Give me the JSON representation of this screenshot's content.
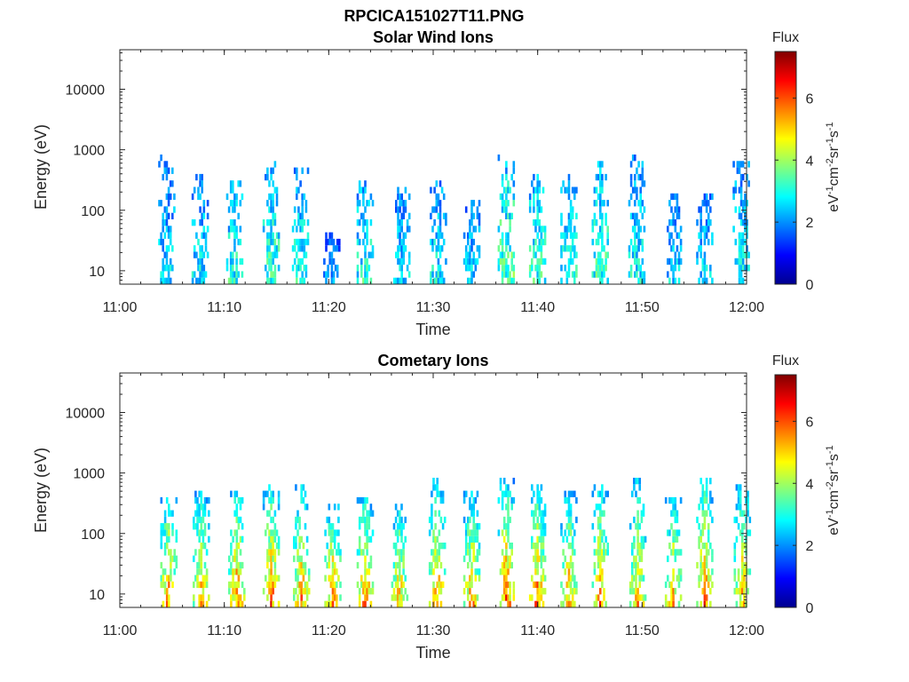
{
  "figure": {
    "title": "RPCICA151027T11.PNG"
  },
  "colormap": "jet",
  "chart_data": [
    {
      "type": "heatmap",
      "title": "Solar Wind Ions",
      "xlabel": "Time",
      "ylabel": "Energy (eV)",
      "xlim": [
        "11:00",
        "12:00"
      ],
      "yscale": "log",
      "ylim": [
        6,
        45000
      ],
      "x_ticks": [
        "11:00",
        "11:10",
        "11:20",
        "11:30",
        "11:40",
        "11:50",
        "12:00"
      ],
      "y_ticks": [
        "10",
        "100",
        "1000",
        "10000"
      ],
      "colorbar": {
        "label": "Flux",
        "units": "eV-1cm-2sr-1s-1",
        "range": [
          0,
          7.5
        ],
        "ticks": [
          "0",
          "2",
          "4",
          "6"
        ]
      },
      "bursts": [
        {
          "t": "11:04.5",
          "emax": 750,
          "peak_flux": 3.0
        },
        {
          "t": "11:07.7",
          "emax": 420,
          "peak_flux": 3.2
        },
        {
          "t": "11:11.0",
          "emax": 300,
          "peak_flux": 3.5
        },
        {
          "t": "11:14.5",
          "emax": 600,
          "peak_flux": 3.8
        },
        {
          "t": "11:17.3",
          "emax": 550,
          "peak_flux": 3.4
        },
        {
          "t": "11:20.3",
          "emax": 40,
          "peak_flux": 2.5
        },
        {
          "t": "11:23.5",
          "emax": 300,
          "peak_flux": 3.5
        },
        {
          "t": "11:27.0",
          "emax": 250,
          "peak_flux": 3.0
        },
        {
          "t": "11:30.5",
          "emax": 350,
          "peak_flux": 3.3
        },
        {
          "t": "11:33.7",
          "emax": 150,
          "peak_flux": 3.0
        },
        {
          "t": "11:37.0",
          "emax": 800,
          "peak_flux": 4.0
        },
        {
          "t": "11:40.0",
          "emax": 400,
          "peak_flux": 3.6
        },
        {
          "t": "11:43.0",
          "emax": 400,
          "peak_flux": 3.4
        },
        {
          "t": "11:46.0",
          "emax": 650,
          "peak_flux": 3.7
        },
        {
          "t": "11:49.5",
          "emax": 850,
          "peak_flux": 3.3
        },
        {
          "t": "11:53.0",
          "emax": 200,
          "peak_flux": 3.0
        },
        {
          "t": "11:56.0",
          "emax": 180,
          "peak_flux": 3.0
        },
        {
          "t": "11:59.5",
          "emax": 700,
          "peak_flux": 3.2
        }
      ]
    },
    {
      "type": "heatmap",
      "title": "Cometary Ions",
      "xlabel": "Time",
      "ylabel": "Energy (eV)",
      "xlim": [
        "11:00",
        "12:00"
      ],
      "yscale": "log",
      "ylim": [
        6,
        45000
      ],
      "x_ticks": [
        "11:00",
        "11:10",
        "11:20",
        "11:30",
        "11:40",
        "11:50",
        "12:00"
      ],
      "y_ticks": [
        "10",
        "100",
        "1000",
        "10000"
      ],
      "colorbar": {
        "label": "Flux",
        "units": "eV-1cm-2sr-1s-1",
        "range": [
          0,
          7.5
        ],
        "ticks": [
          "0",
          "2",
          "4",
          "6"
        ]
      },
      "bursts": [
        {
          "t": "11:04.7",
          "emax": 450,
          "peak_flux": 6.2
        },
        {
          "t": "11:07.8",
          "emax": 550,
          "peak_flux": 5.8
        },
        {
          "t": "11:11.2",
          "emax": 550,
          "peak_flux": 6.3
        },
        {
          "t": "11:14.5",
          "emax": 600,
          "peak_flux": 6.5
        },
        {
          "t": "11:17.4",
          "emax": 650,
          "peak_flux": 6.0
        },
        {
          "t": "11:20.4",
          "emax": 350,
          "peak_flux": 6.2
        },
        {
          "t": "11:23.5",
          "emax": 400,
          "peak_flux": 6.3
        },
        {
          "t": "11:26.8",
          "emax": 300,
          "peak_flux": 5.8
        },
        {
          "t": "11:30.4",
          "emax": 850,
          "peak_flux": 6.0
        },
        {
          "t": "11:33.7",
          "emax": 500,
          "peak_flux": 6.0
        },
        {
          "t": "11:37.0",
          "emax": 850,
          "peak_flux": 6.4
        },
        {
          "t": "11:40.0",
          "emax": 700,
          "peak_flux": 6.3
        },
        {
          "t": "11:43.0",
          "emax": 500,
          "peak_flux": 6.0
        },
        {
          "t": "11:46.0",
          "emax": 650,
          "peak_flux": 6.2
        },
        {
          "t": "11:49.6",
          "emax": 800,
          "peak_flux": 5.8
        },
        {
          "t": "11:53.0",
          "emax": 450,
          "peak_flux": 5.8
        },
        {
          "t": "11:56.0",
          "emax": 900,
          "peak_flux": 6.3
        },
        {
          "t": "11:59.6",
          "emax": 800,
          "peak_flux": 5.8
        }
      ]
    }
  ]
}
